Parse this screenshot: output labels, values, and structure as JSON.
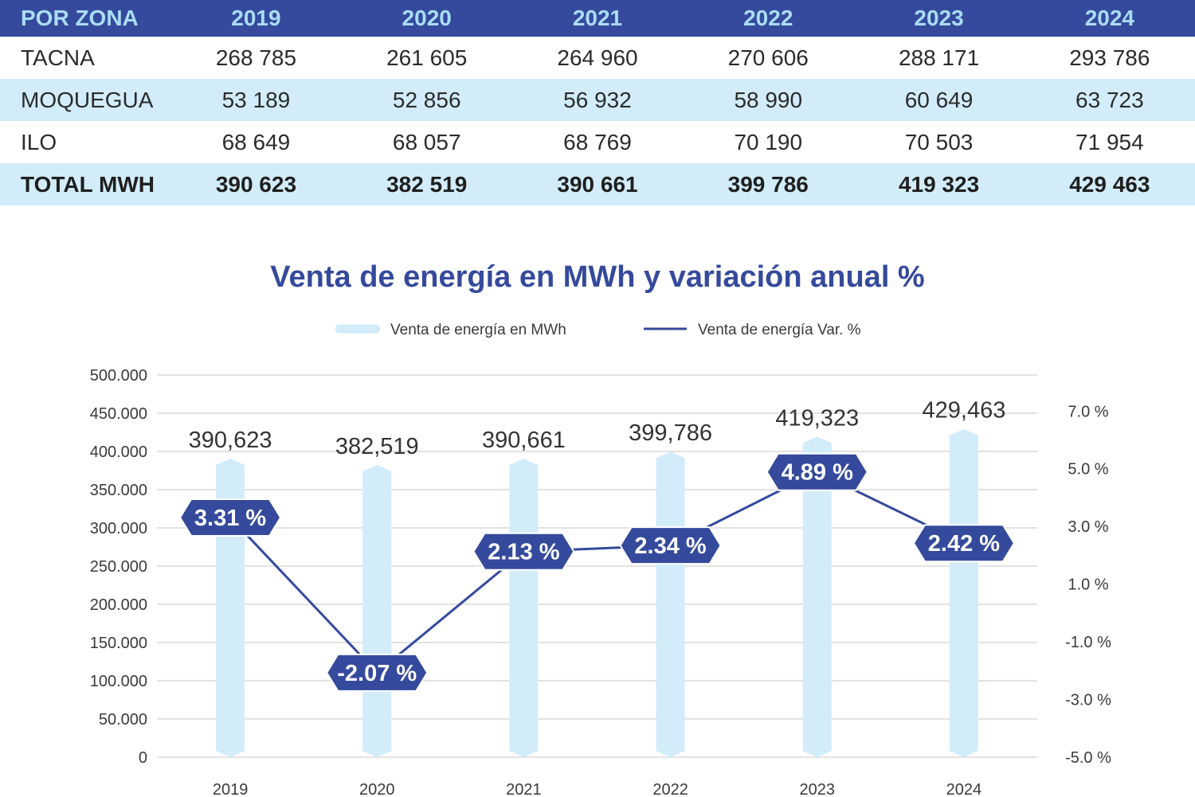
{
  "table": {
    "header": [
      "POR ZONA",
      "2019",
      "2020",
      "2021",
      "2022",
      "2023",
      "2024"
    ],
    "rows": [
      {
        "zona": "TACNA",
        "values": [
          "268 785",
          "261 605",
          "264 960",
          "270 606",
          "288 171",
          "293 786"
        ]
      },
      {
        "zona": "MOQUEGUA",
        "values": [
          "53 189",
          "52 856",
          "56 932",
          "58 990",
          "60 649",
          "63 723"
        ]
      },
      {
        "zona": "ILO",
        "values": [
          "68 649",
          "68 057",
          "68 769",
          "70 190",
          "70 503",
          "71 954"
        ]
      },
      {
        "zona": "TOTAL MWH",
        "values": [
          "390 623",
          "382 519",
          "390 661",
          "399 786",
          "419 323",
          "429 463"
        ]
      }
    ]
  },
  "colors": {
    "header_bg": "#354a9c",
    "header_text": "#a9ddf6",
    "row_alt": "#d2ecfa",
    "bar": "#d2ecfa",
    "line": "#354a9c",
    "grid": "#d9d9d9"
  },
  "chart_data": {
    "type": "bar+line",
    "title": "Venta de energía en MWh y variación anual %",
    "legend_position": "top-center",
    "categories": [
      "2019",
      "2020",
      "2021",
      "2022",
      "2023",
      "2024"
    ],
    "series": [
      {
        "name": "Venta de energía en MWh",
        "type": "bar",
        "axis": "left",
        "values": [
          390623,
          382519,
          390661,
          399786,
          419323,
          429463
        ],
        "labels": [
          "390,623",
          "382,519",
          "390,661",
          "399,786",
          "419,323",
          "429,463"
        ]
      },
      {
        "name": "Venta de energía Var. %",
        "type": "line",
        "axis": "right",
        "values": [
          3.31,
          -2.07,
          2.13,
          2.34,
          4.89,
          2.42
        ],
        "labels": [
          "3.31 %",
          "-2.07 %",
          "2.13 %",
          "2.34 %",
          "4.89 %",
          "2.42 %"
        ]
      }
    ],
    "y_left": {
      "range": [
        0,
        500000
      ],
      "ticks": [
        "0",
        "50.000",
        "100.000",
        "150.000",
        "200.000",
        "250.000",
        "300.000",
        "350.000",
        "400.000",
        "450.000",
        "500.000"
      ]
    },
    "y_right": {
      "range": [
        -5,
        8.25
      ],
      "tick_values": [
        -5,
        -3,
        -1,
        1,
        3,
        5,
        7
      ],
      "ticks": [
        "-5.0 %",
        "-3.0 %",
        "-1.0 %",
        "1.0 %",
        "3.0 %",
        "5.0 %",
        "7.0 %"
      ]
    },
    "grid": true
  }
}
